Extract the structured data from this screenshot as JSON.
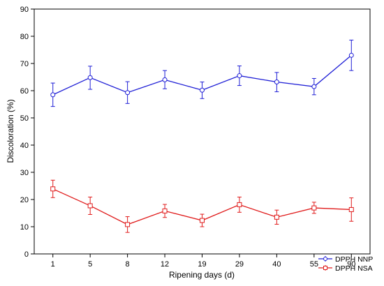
{
  "chart_data": {
    "type": "line",
    "xlabel": "Ripening days (d)",
    "ylabel": "Discoloration (%)",
    "categories": [
      "1",
      "5",
      "8",
      "12",
      "19",
      "29",
      "40",
      "55",
      "90"
    ],
    "yticks": [
      "0",
      "10",
      "20",
      "30",
      "40",
      "50",
      "60",
      "70",
      "80",
      "90"
    ],
    "ylim": [
      0,
      90
    ],
    "grid": false,
    "legend_position": "bottom-right",
    "series": [
      {
        "name": "DPPH NNP",
        "color": "#1f1fd6",
        "marker": "circle",
        "values": [
          58.5,
          64.8,
          59.3,
          64.0,
          60.2,
          65.5,
          63.2,
          61.5,
          73.0
        ],
        "err_low": [
          54.2,
          60.5,
          55.3,
          60.7,
          57.1,
          61.9,
          59.6,
          58.5,
          67.4
        ],
        "err_high": [
          62.8,
          69.0,
          63.3,
          67.4,
          63.2,
          69.1,
          66.7,
          64.5,
          78.6
        ]
      },
      {
        "name": "DPPH NSA",
        "color": "#e01b1b",
        "marker": "square",
        "values": [
          23.9,
          17.7,
          10.8,
          15.8,
          12.3,
          18.1,
          13.5,
          16.9,
          16.3
        ],
        "err_low": [
          20.7,
          14.5,
          7.9,
          13.4,
          10.0,
          15.3,
          10.9,
          14.9,
          12.0
        ],
        "err_high": [
          27.1,
          20.9,
          13.7,
          18.2,
          14.6,
          20.9,
          16.1,
          19.0,
          20.6
        ]
      }
    ]
  }
}
